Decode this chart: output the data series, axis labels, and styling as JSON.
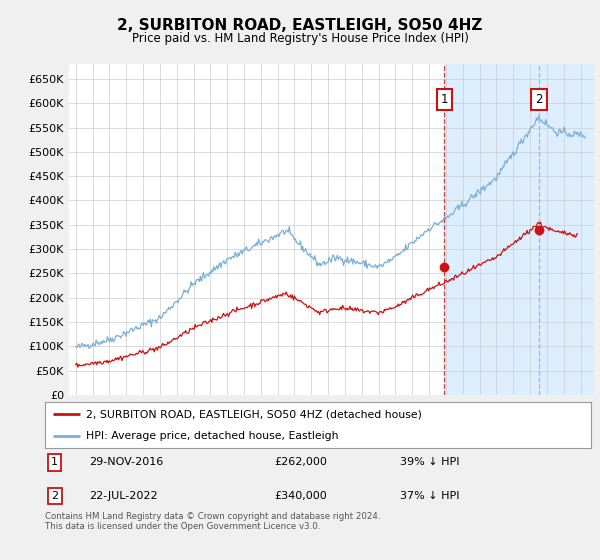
{
  "title": "2, SURBITON ROAD, EASTLEIGH, SO50 4HZ",
  "subtitle": "Price paid vs. HM Land Registry's House Price Index (HPI)",
  "title_fontsize": 11,
  "subtitle_fontsize": 9,
  "ylabel_ticks": [
    "£0",
    "£50K",
    "£100K",
    "£150K",
    "£200K",
    "£250K",
    "£300K",
    "£350K",
    "£400K",
    "£450K",
    "£500K",
    "£550K",
    "£600K",
    "£650K"
  ],
  "ytick_vals": [
    0,
    50000,
    100000,
    150000,
    200000,
    250000,
    300000,
    350000,
    400000,
    450000,
    500000,
    550000,
    600000,
    650000
  ],
  "ylim": [
    0,
    680000
  ],
  "xlim_left": 1994.6,
  "xlim_right": 2025.8,
  "hpi_color": "#7ab0d4",
  "price_color": "#cc1111",
  "bg_color": "#ffffff",
  "shade_color": "#ddeeff",
  "grid_color": "#cccccc",
  "legend_label_price": "2, SURBITON ROAD, EASTLEIGH, SO50 4HZ (detached house)",
  "legend_label_hpi": "HPI: Average price, detached house, Eastleigh",
  "event1_date": 2016.915,
  "event1_price": 262000,
  "event1_label": "1",
  "event2_date": 2022.55,
  "event2_price": 340000,
  "event2_label": "2",
  "footnote": "Contains HM Land Registry data © Crown copyright and database right 2024.\nThis data is licensed under the Open Government Licence v3.0.",
  "box1_label": "1",
  "box2_label": "2",
  "info1_date": "29-NOV-2016",
  "info1_price": "£262,000",
  "info1_pct": "39% ↓ HPI",
  "info2_date": "22-JUL-2022",
  "info2_price": "£340,000",
  "info2_pct": "37% ↓ HPI"
}
